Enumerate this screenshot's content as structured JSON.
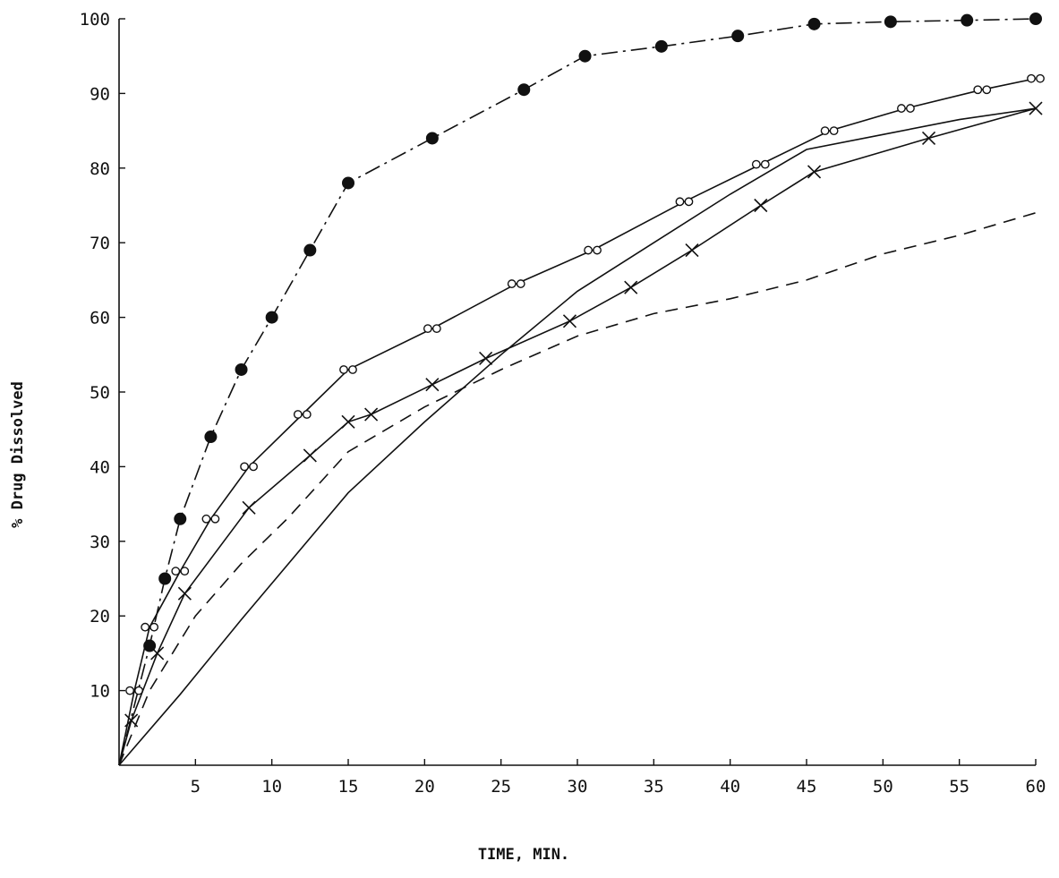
{
  "chart_data": {
    "type": "line",
    "title": "",
    "xlabel": "TIME, MIN.",
    "ylabel": "% Drug Dissolved",
    "xlim": [
      0,
      60
    ],
    "ylim": [
      0,
      100
    ],
    "xticks": [
      "5",
      "10",
      "15",
      "20",
      "25",
      "30",
      "35",
      "40",
      "45",
      "50",
      "55",
      "60"
    ],
    "yticks": [
      "10",
      "20",
      "30",
      "40",
      "50",
      "60",
      "70",
      "80",
      "90",
      "100"
    ],
    "grid": false,
    "legend": "none",
    "series": [
      {
        "marker": "filled-circle",
        "dash": "dash-dot",
        "points": [
          [
            0,
            0
          ],
          [
            2,
            16
          ],
          [
            3,
            25
          ],
          [
            4,
            33
          ],
          [
            6,
            44
          ],
          [
            8,
            53
          ],
          [
            10,
            60
          ],
          [
            12.5,
            69
          ],
          [
            15,
            78
          ],
          [
            20.5,
            84
          ],
          [
            26.5,
            90.5
          ],
          [
            30.5,
            95
          ],
          [
            35.5,
            96.3
          ],
          [
            40.5,
            97.7
          ],
          [
            45.5,
            99.3
          ],
          [
            50.5,
            99.6
          ],
          [
            55.5,
            99.8
          ],
          [
            60,
            100
          ]
        ]
      },
      {
        "marker": "open-circle",
        "dash": "solid",
        "points": [
          [
            0,
            0
          ],
          [
            1,
            10
          ],
          [
            2,
            18.5
          ],
          [
            4,
            26
          ],
          [
            6,
            33
          ],
          [
            8.5,
            40
          ],
          [
            12,
            47
          ],
          [
            15,
            53
          ],
          [
            20.5,
            58.5
          ],
          [
            26,
            64.5
          ],
          [
            31,
            69
          ],
          [
            37,
            75.5
          ],
          [
            42,
            80.5
          ],
          [
            46.5,
            85
          ],
          [
            51.5,
            88
          ],
          [
            56.5,
            90.5
          ],
          [
            60,
            92
          ]
        ]
      },
      {
        "marker": "cross",
        "dash": "solid",
        "points": [
          [
            0,
            0
          ],
          [
            0.8,
            6
          ],
          [
            2.5,
            15
          ],
          [
            4.3,
            23
          ],
          [
            8.5,
            34.5
          ],
          [
            12.5,
            41.5
          ],
          [
            15,
            46
          ],
          [
            16.5,
            47
          ],
          [
            20.5,
            51
          ],
          [
            24,
            54.5
          ],
          [
            29.5,
            59.5
          ],
          [
            33.5,
            64
          ],
          [
            37.5,
            69
          ],
          [
            42,
            75
          ],
          [
            45.5,
            79.5
          ],
          [
            53,
            84
          ],
          [
            60,
            88
          ]
        ]
      },
      {
        "marker": "none",
        "dash": "solid",
        "points": [
          [
            0,
            0
          ],
          [
            4,
            9.5
          ],
          [
            8,
            19.5
          ],
          [
            15,
            36.5
          ],
          [
            20,
            46
          ],
          [
            25,
            55
          ],
          [
            30,
            63.5
          ],
          [
            35,
            70
          ],
          [
            40,
            76.5
          ],
          [
            45,
            82.5
          ],
          [
            50,
            84.5
          ],
          [
            55,
            86.5
          ],
          [
            60,
            88
          ]
        ]
      },
      {
        "marker": "none",
        "dash": "dashed",
        "points": [
          [
            0,
            0
          ],
          [
            2,
            10
          ],
          [
            5,
            20
          ],
          [
            8,
            27
          ],
          [
            11,
            33
          ],
          [
            15,
            42
          ],
          [
            20,
            48
          ],
          [
            25,
            53
          ],
          [
            30,
            57.5
          ],
          [
            35,
            60.5
          ],
          [
            40,
            62.5
          ],
          [
            45,
            65
          ],
          [
            50,
            68.5
          ],
          [
            55,
            71
          ],
          [
            60,
            74
          ]
        ]
      }
    ]
  }
}
